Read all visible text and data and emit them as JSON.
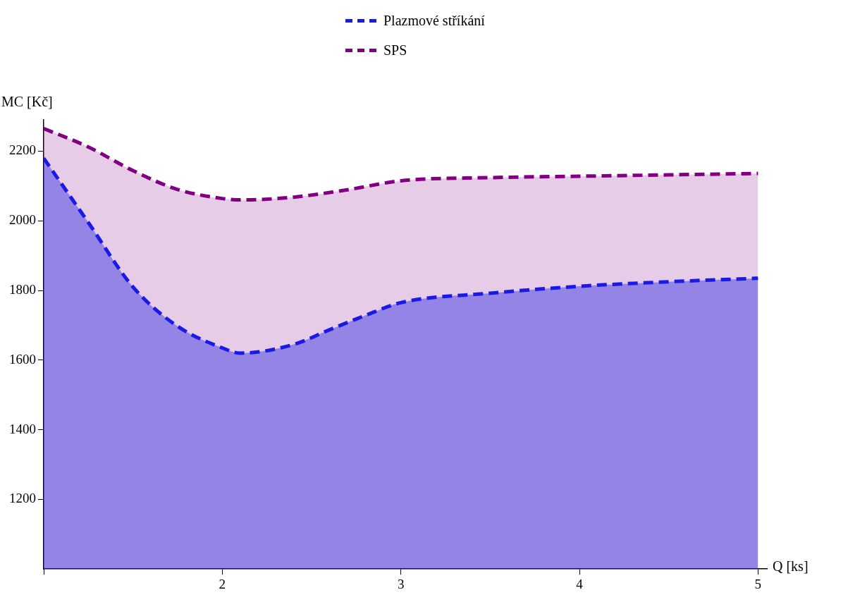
{
  "chart_data": {
    "type": "area",
    "xlabel": "Q [ks]",
    "ylabel": "MC [Kč]",
    "xlim": [
      1,
      5.05
    ],
    "xticks": [
      {
        "value": 1,
        "label": null
      },
      2,
      3,
      4,
      5
    ],
    "ylim": [
      1000,
      2290
    ],
    "yticks": [
      1200,
      1400,
      1600,
      1800,
      2000,
      2200
    ],
    "grid": false,
    "legend": "top",
    "marker": "none",
    "line_style": "dashed",
    "series": [
      {
        "name": "Plazmové stříkání",
        "color": "#1a1ae6",
        "x": [
          1,
          1.25,
          1.5,
          1.75,
          2,
          2.1,
          2.4,
          2.6,
          2.8,
          3,
          3.5,
          4,
          4.5,
          5
        ],
        "values": [
          2180,
          1995,
          1810,
          1697,
          1635,
          1620,
          1645,
          1687,
          1728,
          1765,
          1792,
          1812,
          1825,
          1835
        ]
      },
      {
        "name": "SPS",
        "color": "#800080",
        "x": [
          1,
          1.25,
          1.5,
          1.75,
          2,
          2.1,
          2.4,
          2.7,
          3,
          3.5,
          4,
          4.5,
          5
        ],
        "values": [
          2265,
          2212,
          2144,
          2090,
          2064,
          2060,
          2068,
          2089,
          2115,
          2124,
          2128,
          2132,
          2136
        ]
      }
    ]
  }
}
